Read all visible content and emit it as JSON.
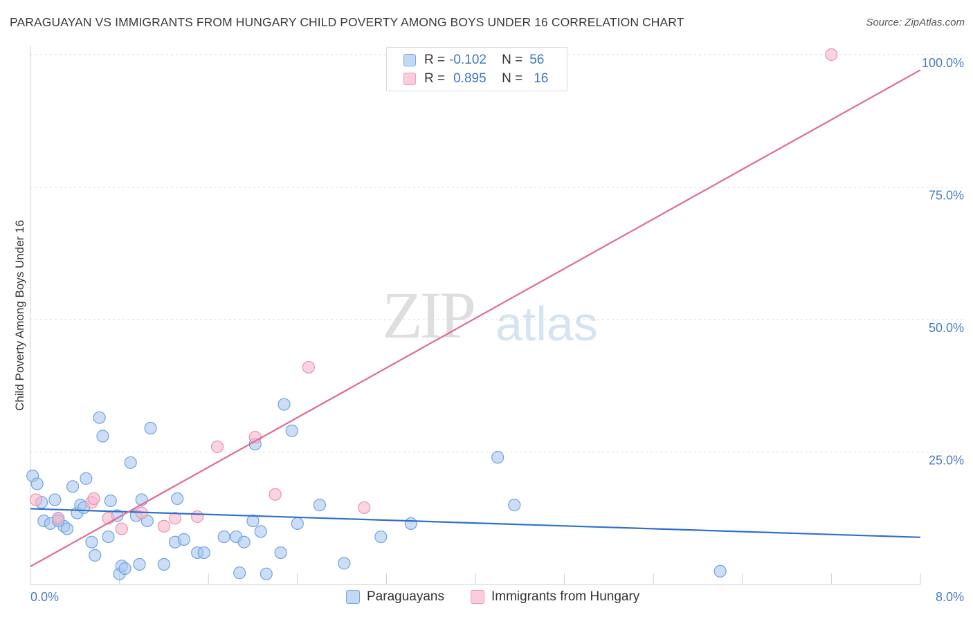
{
  "header": {
    "title": "PARAGUAYAN VS IMMIGRANTS FROM HUNGARY CHILD POVERTY AMONG BOYS UNDER 16 CORRELATION CHART",
    "source": "Source: ZipAtlas.com"
  },
  "watermark": {
    "zip": "ZIP",
    "atlas": "atlas"
  },
  "legend": {
    "rows": [
      {
        "r_label": "R =",
        "r_value": "-0.102",
        "n_label": "N =",
        "n_value": "56",
        "color": "#a8c8f0"
      },
      {
        "r_label": "R =",
        "r_value": "0.895",
        "n_label": "N =",
        "n_value": "16",
        "color": "#f6b8cb"
      }
    ]
  },
  "bottom_legend": {
    "items": [
      {
        "label": "Paraguayans",
        "color": "#a8c8f0"
      },
      {
        "label": "Immigrants from Hungary",
        "color": "#f6b8cb"
      }
    ]
  },
  "chart_data": {
    "type": "scatter",
    "title": "PARAGUAYAN VS IMMIGRANTS FROM HUNGARY CHILD POVERTY AMONG BOYS UNDER 16 CORRELATION CHART",
    "xlabel": "",
    "ylabel": "Child Poverty Among Boys Under 16",
    "xlim": [
      0,
      8
    ],
    "ylim": [
      0,
      100
    ],
    "x_tick_labels": [
      "0.0%",
      "8.0%"
    ],
    "y_ticks": [
      25,
      50,
      75,
      100
    ],
    "y_tick_labels": [
      "25.0%",
      "50.0%",
      "75.0%",
      "100.0%"
    ],
    "grid": true,
    "series": [
      {
        "name": "Paraguayans",
        "color": "#6fa3e0",
        "fill": "#a8c8f0",
        "trend": {
          "x": [
            0,
            8
          ],
          "y": [
            14.3,
            8.9
          ]
        },
        "points": [
          [
            0.02,
            20.5
          ],
          [
            0.06,
            19.0
          ],
          [
            0.1,
            15.5
          ],
          [
            0.12,
            12.0
          ],
          [
            0.18,
            11.5
          ],
          [
            0.22,
            16.0
          ],
          [
            0.25,
            12.5
          ],
          [
            0.3,
            11.0
          ],
          [
            0.33,
            10.5
          ],
          [
            0.38,
            18.5
          ],
          [
            0.42,
            13.5
          ],
          [
            0.45,
            15.0
          ],
          [
            0.48,
            14.5
          ],
          [
            0.5,
            20.0
          ],
          [
            0.55,
            8.0
          ],
          [
            0.58,
            5.5
          ],
          [
            0.62,
            31.5
          ],
          [
            0.65,
            28.0
          ],
          [
            0.7,
            9.0
          ],
          [
            0.72,
            15.8
          ],
          [
            0.78,
            13.0
          ],
          [
            0.8,
            2.0
          ],
          [
            0.82,
            3.5
          ],
          [
            0.85,
            3.0
          ],
          [
            0.9,
            23.0
          ],
          [
            0.95,
            13.0
          ],
          [
            0.98,
            3.8
          ],
          [
            1.0,
            16.0
          ],
          [
            1.05,
            12.0
          ],
          [
            1.08,
            29.5
          ],
          [
            1.2,
            3.8
          ],
          [
            1.3,
            8.0
          ],
          [
            1.32,
            16.2
          ],
          [
            1.38,
            8.5
          ],
          [
            1.5,
            6.0
          ],
          [
            1.56,
            6.0
          ],
          [
            1.74,
            9.0
          ],
          [
            1.85,
            9.0
          ],
          [
            1.88,
            2.2
          ],
          [
            1.92,
            8.0
          ],
          [
            2.0,
            12.0
          ],
          [
            2.02,
            26.5
          ],
          [
            2.07,
            10.0
          ],
          [
            2.12,
            2.0
          ],
          [
            2.25,
            6.0
          ],
          [
            2.28,
            34.0
          ],
          [
            2.35,
            29.0
          ],
          [
            2.4,
            11.5
          ],
          [
            2.6,
            15.0
          ],
          [
            2.82,
            4.0
          ],
          [
            3.15,
            9.0
          ],
          [
            3.42,
            11.5
          ],
          [
            4.2,
            24.0
          ],
          [
            4.35,
            15.0
          ],
          [
            6.2,
            2.5
          ],
          [
            0.25,
            12.0
          ]
        ]
      },
      {
        "name": "Immigrants from Hungary",
        "color": "#ee8fae",
        "fill": "#f6b8cb",
        "trend": {
          "x": [
            0,
            8
          ],
          "y": [
            3.4,
            97.1
          ]
        },
        "points": [
          [
            0.05,
            16.0
          ],
          [
            0.25,
            12.5
          ],
          [
            0.55,
            15.5
          ],
          [
            0.57,
            16.2
          ],
          [
            0.7,
            12.5
          ],
          [
            0.82,
            10.5
          ],
          [
            1.0,
            13.5
          ],
          [
            1.2,
            11.0
          ],
          [
            1.3,
            12.5
          ],
          [
            1.5,
            12.8
          ],
          [
            1.68,
            26.0
          ],
          [
            2.02,
            27.8
          ],
          [
            2.2,
            17.0
          ],
          [
            2.5,
            41.0
          ],
          [
            3.0,
            14.5
          ],
          [
            7.2,
            100.0
          ]
        ]
      }
    ]
  }
}
